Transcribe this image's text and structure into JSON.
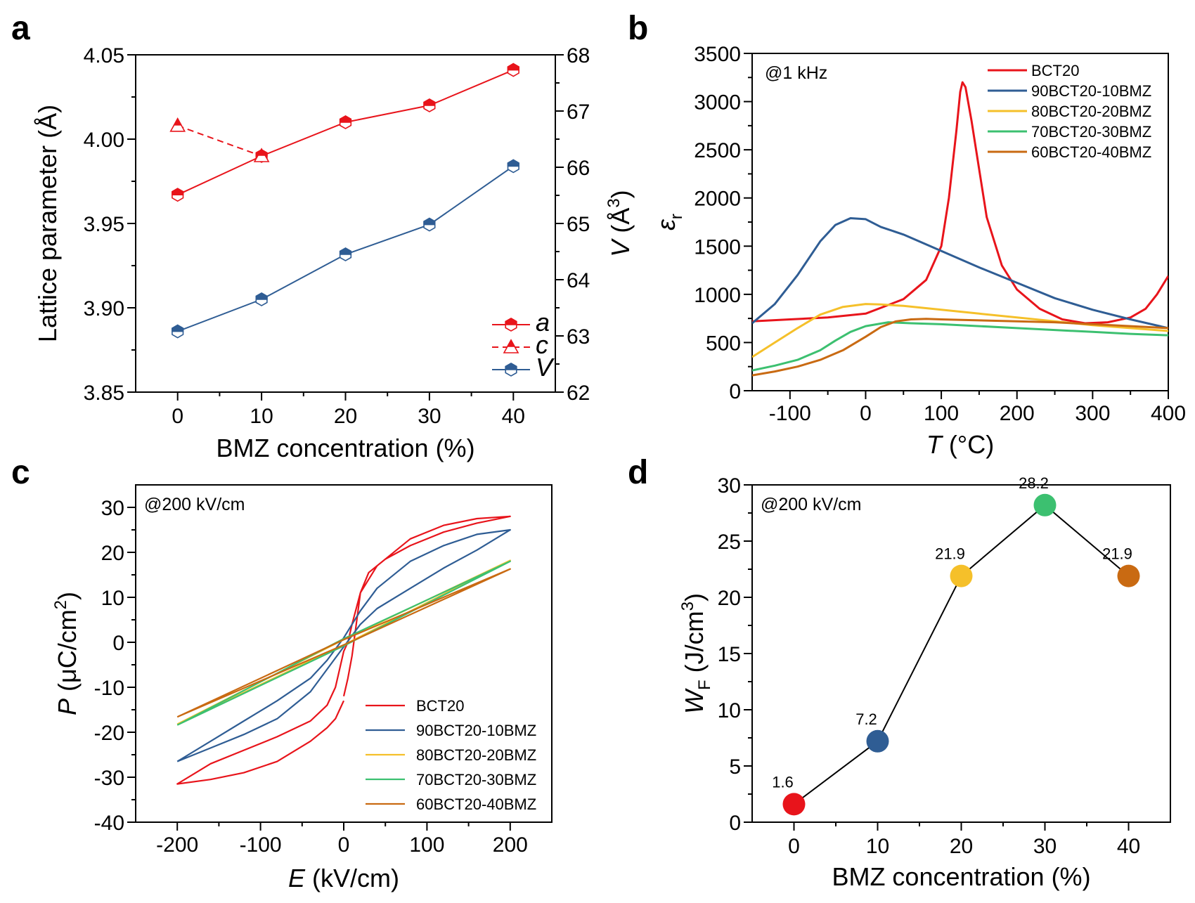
{
  "colors": {
    "red": "#e8141b",
    "blue": "#2f5d94",
    "yellow": "#f5c02a",
    "green": "#3cc070",
    "orange": "#c96a12",
    "black": "#000000"
  },
  "chart_data": [
    {
      "id": "a",
      "panel_label": "a",
      "type": "line",
      "xlabel": "BMZ concentration (%)",
      "ylabel": "Lattice parameter (Å)",
      "y2label_italic": "V",
      "y2label_rest": " (Å",
      "y2label_sup": "3",
      "y2label_end": ")",
      "xlim": [
        -5,
        45
      ],
      "ylim": [
        3.85,
        4.05
      ],
      "y2lim": [
        62,
        68
      ],
      "xticks": [
        0,
        10,
        20,
        30,
        40
      ],
      "xtick_labels": [
        "0",
        "10",
        "20",
        "30",
        "40"
      ],
      "yticks": [
        3.85,
        3.9,
        3.95,
        4.0,
        4.05
      ],
      "ytick_labels": [
        "3.85",
        "3.90",
        "3.95",
        "4.00",
        "4.05"
      ],
      "y2ticks": [
        62,
        63,
        64,
        65,
        66,
        67,
        68
      ],
      "y2tick_labels": [
        "62",
        "63",
        "64",
        "65",
        "66",
        "67",
        "68"
      ],
      "legend_position": "bottom-right",
      "series": [
        {
          "name": "a",
          "axis": "left",
          "x": [
            0,
            10,
            20,
            30,
            40
          ],
          "values": [
            3.967,
            3.99,
            4.01,
            4.02,
            4.041
          ],
          "color": "red",
          "dashed": false,
          "marker": "hexagon"
        },
        {
          "name": "c",
          "axis": "left",
          "x": [
            0,
            10
          ],
          "values": [
            4.008,
            3.99
          ],
          "color": "red",
          "dashed": true,
          "marker": "triangle"
        },
        {
          "name": "V",
          "axis": "right",
          "x": [
            0,
            10,
            20,
            30,
            40
          ],
          "values": [
            63.08,
            63.65,
            64.45,
            64.98,
            66.02
          ],
          "color": "blue",
          "dashed": false,
          "marker": "hexagon"
        }
      ]
    },
    {
      "id": "b",
      "panel_label": "b",
      "type": "line",
      "xlabel_italic": "T",
      "xlabel_rest": " (°C)",
      "ylabel_italic": "ε",
      "ylabel_sub": "r",
      "annotation": "@1 kHz",
      "xlim": [
        -150,
        400
      ],
      "ylim": [
        0,
        3500
      ],
      "xticks": [
        -100,
        0,
        100,
        200,
        300,
        400
      ],
      "xtick_labels": [
        "-100",
        "0",
        "100",
        "200",
        "300",
        "400"
      ],
      "yticks": [
        0,
        500,
        1000,
        1500,
        2000,
        2500,
        3000,
        3500
      ],
      "ytick_labels": [
        "0",
        "500",
        "1000",
        "1500",
        "2000",
        "2500",
        "3000",
        "3500"
      ],
      "legend_position": "top-right",
      "series": [
        {
          "name": "BCT20",
          "color": "red",
          "x": [
            -150,
            -100,
            -50,
            0,
            50,
            80,
            100,
            110,
            120,
            125,
            128,
            132,
            140,
            150,
            160,
            180,
            200,
            230,
            260,
            290,
            320,
            350,
            370,
            385,
            400
          ],
          "values": [
            720,
            740,
            760,
            800,
            950,
            1150,
            1500,
            2000,
            2700,
            3100,
            3200,
            3150,
            2800,
            2300,
            1800,
            1300,
            1050,
            850,
            740,
            700,
            710,
            760,
            850,
            1000,
            1190
          ]
        },
        {
          "name": "90BCT20-10BMZ",
          "color": "blue",
          "x": [
            -150,
            -120,
            -90,
            -60,
            -40,
            -20,
            0,
            20,
            50,
            100,
            150,
            200,
            250,
            300,
            350,
            400
          ],
          "values": [
            700,
            900,
            1200,
            1550,
            1720,
            1790,
            1780,
            1700,
            1620,
            1450,
            1280,
            1120,
            960,
            840,
            740,
            650
          ]
        },
        {
          "name": "80BCT20-20BMZ",
          "color": "yellow",
          "x": [
            -150,
            -120,
            -90,
            -60,
            -30,
            0,
            20,
            50,
            100,
            150,
            200,
            250,
            300,
            350,
            400
          ],
          "values": [
            350,
            500,
            650,
            790,
            870,
            900,
            895,
            880,
            840,
            800,
            760,
            720,
            680,
            650,
            620
          ]
        },
        {
          "name": "70BCT20-30BMZ",
          "color": "green",
          "x": [
            -150,
            -120,
            -90,
            -60,
            -40,
            -20,
            0,
            30,
            60,
            100,
            150,
            200,
            250,
            300,
            350,
            400
          ],
          "values": [
            210,
            260,
            320,
            420,
            520,
            610,
            670,
            710,
            700,
            690,
            670,
            650,
            630,
            610,
            590,
            575
          ]
        },
        {
          "name": "60BCT20-40BMZ",
          "color": "orange",
          "x": [
            -150,
            -120,
            -90,
            -60,
            -30,
            0,
            20,
            40,
            60,
            80,
            100,
            150,
            200,
            250,
            300,
            350,
            400
          ],
          "values": [
            160,
            200,
            250,
            320,
            420,
            560,
            660,
            720,
            740,
            745,
            740,
            730,
            720,
            710,
            690,
            670,
            650
          ]
        }
      ]
    },
    {
      "id": "c",
      "panel_label": "c",
      "type": "line",
      "xlabel_italic": "E",
      "xlabel_rest": " (kV/cm)",
      "ylabel_italic": "P",
      "ylabel_rest": " (μC/cm",
      "ylabel_sup": "2",
      "ylabel_end": ")",
      "annotation": "@200 kV/cm",
      "xlim": [
        -250,
        250
      ],
      "ylim": [
        -40,
        35
      ],
      "xticks": [
        -200,
        -100,
        0,
        100,
        200
      ],
      "xtick_labels": [
        "-200",
        "-100",
        "0",
        "100",
        "200"
      ],
      "yticks": [
        -40,
        -30,
        -20,
        -10,
        0,
        10,
        20,
        30
      ],
      "ytick_labels": [
        "-40",
        "-30",
        "-20",
        "-10",
        "0",
        "10",
        "20",
        "30"
      ],
      "legend_position": "bottom-right",
      "series": [
        {
          "name": "BCT20",
          "color": "red",
          "x": [
            0,
            5,
            10,
            15,
            20,
            30,
            50,
            80,
            120,
            160,
            200,
            160,
            120,
            80,
            40,
            20,
            10,
            5,
            0,
            -5,
            -10,
            -20,
            -40,
            -80,
            -120,
            -160,
            -200,
            -160,
            -120,
            -80,
            -40,
            -20,
            -10,
            -5,
            0
          ],
          "values": [
            -12,
            -8,
            -3,
            4,
            11,
            15.5,
            18.5,
            21.5,
            24.5,
            26.5,
            28,
            27.5,
            26,
            23,
            17,
            11,
            4,
            0,
            -2,
            -6,
            -10,
            -14,
            -17.5,
            -21,
            -24,
            -27,
            -31.5,
            -30.5,
            -29,
            -26.5,
            -22,
            -19,
            -17,
            -15,
            -13
          ]
        },
        {
          "name": "90BCT20-10BMZ",
          "color": "blue",
          "x": [
            -200,
            -160,
            -120,
            -80,
            -40,
            -20,
            0,
            20,
            40,
            80,
            120,
            160,
            200,
            160,
            120,
            80,
            40,
            20,
            0,
            -20,
            -40,
            -80,
            -120,
            -160,
            -200
          ],
          "values": [
            -26.5,
            -23.5,
            -20.5,
            -17,
            -11,
            -6,
            -1,
            4,
            7.5,
            12,
            16.5,
            20.5,
            25,
            24,
            21.5,
            18,
            12,
            7,
            1,
            -4,
            -8,
            -13,
            -17.5,
            -22,
            -26.5
          ]
        },
        {
          "name": "80BCT20-20BMZ",
          "color": "yellow",
          "x": [
            -200,
            0,
            200,
            0,
            -200
          ],
          "values": [
            -18.2,
            -0.6,
            18.2,
            0.6,
            -18.2
          ]
        },
        {
          "name": "70BCT20-30BMZ",
          "color": "green",
          "x": [
            -200,
            0,
            200,
            0,
            -200
          ],
          "values": [
            -18.4,
            -0.8,
            18,
            0.8,
            -18.4
          ]
        },
        {
          "name": "60BCT20-40BMZ",
          "color": "orange",
          "x": [
            -200,
            0,
            200,
            0,
            -200
          ],
          "values": [
            -16.6,
            -0.6,
            16.3,
            0.6,
            -16.6
          ]
        }
      ]
    },
    {
      "id": "d",
      "panel_label": "d",
      "type": "scatter",
      "xlabel": "BMZ concentration (%)",
      "ylabel_italic": "W",
      "ylabel_sub": "F",
      "ylabel_rest": " (J/cm",
      "ylabel_sup": "3",
      "ylabel_end": ")",
      "annotation": "@200 kV/cm",
      "xlim": [
        -5,
        45
      ],
      "ylim": [
        0,
        30
      ],
      "xticks": [
        0,
        10,
        20,
        30,
        40
      ],
      "xtick_labels": [
        "0",
        "10",
        "20",
        "30",
        "40"
      ],
      "yticks": [
        0,
        5,
        10,
        15,
        20,
        25,
        30
      ],
      "ytick_labels": [
        "0",
        "5",
        "10",
        "15",
        "20",
        "25",
        "30"
      ],
      "x": [
        0,
        10,
        20,
        30,
        40
      ],
      "values": [
        1.6,
        7.2,
        21.9,
        28.2,
        21.9
      ],
      "data_labels": [
        "1.6",
        "7.2",
        "21.9",
        "28.2",
        "21.9"
      ],
      "point_colors": [
        "red",
        "blue",
        "yellow",
        "green",
        "orange"
      ]
    }
  ]
}
